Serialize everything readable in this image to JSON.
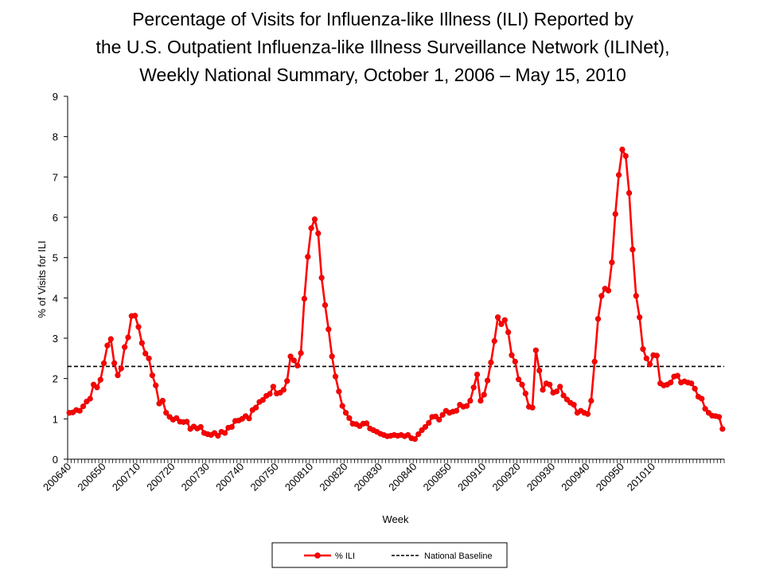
{
  "chart_data": {
    "type": "line",
    "title": [
      "Percentage of Visits for Influenza-like Illness (ILI) Reported by",
      "the U.S. Outpatient Influenza-like Illness Surveillance Network (ILINet),",
      "Weekly National Summary, October 1, 2006 – May 15, 2010"
    ],
    "xlabel": "Week",
    "ylabel": "% of Visits for ILI",
    "ylim": [
      0,
      9
    ],
    "yticks": [
      "0",
      "1",
      "2",
      "3",
      "4",
      "5",
      "6",
      "7",
      "8",
      "9"
    ],
    "x_tick_labels": [
      "200640",
      "200650",
      "200710",
      "200720",
      "200730",
      "200740",
      "200750",
      "200810",
      "200820",
      "200830",
      "200840",
      "200850",
      "200910",
      "200920",
      "200930",
      "200940",
      "200950",
      "201010"
    ],
    "x_tick_label_weeks": [
      "200640",
      "200650",
      "200708",
      "200718",
      "200728",
      "200738",
      "200748",
      "200806",
      "200816",
      "200826",
      "200836",
      "200846",
      "200903",
      "200913",
      "200923",
      "200933",
      "200943",
      "200952"
    ],
    "grid": false,
    "legend_position": "bottom-center",
    "series": [
      {
        "name": "% ILI",
        "color": "#ff0000",
        "marker": "circle",
        "start_week": "200640",
        "values": [
          1.15,
          1.16,
          1.22,
          1.2,
          1.31,
          1.43,
          1.5,
          1.85,
          1.78,
          1.97,
          2.38,
          2.82,
          2.98,
          2.38,
          2.08,
          2.25,
          2.78,
          3.02,
          3.55,
          3.56,
          3.28,
          2.88,
          2.62,
          2.5,
          2.08,
          1.83,
          1.38,
          1.45,
          1.15,
          1.05,
          0.98,
          1.02,
          0.93,
          0.92,
          0.93,
          0.75,
          0.81,
          0.76,
          0.8,
          0.65,
          0.62,
          0.6,
          0.65,
          0.58,
          0.68,
          0.65,
          0.78,
          0.8,
          0.95,
          0.96,
          1.0,
          1.07,
          1.01,
          1.22,
          1.28,
          1.42,
          1.47,
          1.57,
          1.62,
          1.8,
          1.63,
          1.65,
          1.72,
          1.94,
          2.55,
          2.45,
          2.32,
          2.63,
          3.98,
          5.02,
          5.73,
          5.95,
          5.6,
          4.5,
          3.82,
          3.22,
          2.55,
          2.05,
          1.68,
          1.32,
          1.15,
          1.02,
          0.88,
          0.87,
          0.82,
          0.88,
          0.89,
          0.76,
          0.72,
          0.68,
          0.63,
          0.6,
          0.57,
          0.58,
          0.6,
          0.58,
          0.6,
          0.57,
          0.6,
          0.52,
          0.5,
          0.62,
          0.72,
          0.8,
          0.9,
          1.05,
          1.06,
          0.98,
          1.1,
          1.2,
          1.15,
          1.18,
          1.2,
          1.35,
          1.3,
          1.32,
          1.45,
          1.78,
          2.1,
          1.45,
          1.6,
          1.95,
          2.4,
          2.93,
          3.52,
          3.35,
          3.45,
          3.15,
          2.58,
          2.42,
          1.98,
          1.85,
          1.63,
          1.3,
          1.28,
          2.7,
          2.2,
          1.72,
          1.88,
          1.85,
          1.65,
          1.68,
          1.8,
          1.58,
          1.48,
          1.4,
          1.35,
          1.15,
          1.2,
          1.15,
          1.12,
          1.45,
          2.42,
          3.48,
          4.05,
          4.23,
          4.18,
          4.88,
          6.08,
          7.05,
          7.68,
          7.52,
          6.6,
          5.2,
          4.05,
          3.52,
          2.73,
          2.5,
          2.35,
          2.58,
          2.57,
          1.88,
          1.83,
          1.85,
          1.9,
          2.05,
          2.07,
          1.9,
          1.93,
          1.9,
          1.88,
          1.75,
          1.55,
          1.5,
          1.25,
          1.15,
          1.08,
          1.07,
          1.05,
          0.75
        ]
      },
      {
        "name": "National Baseline",
        "color": "#000000",
        "style": "dashed",
        "value": 2.3
      }
    ]
  }
}
